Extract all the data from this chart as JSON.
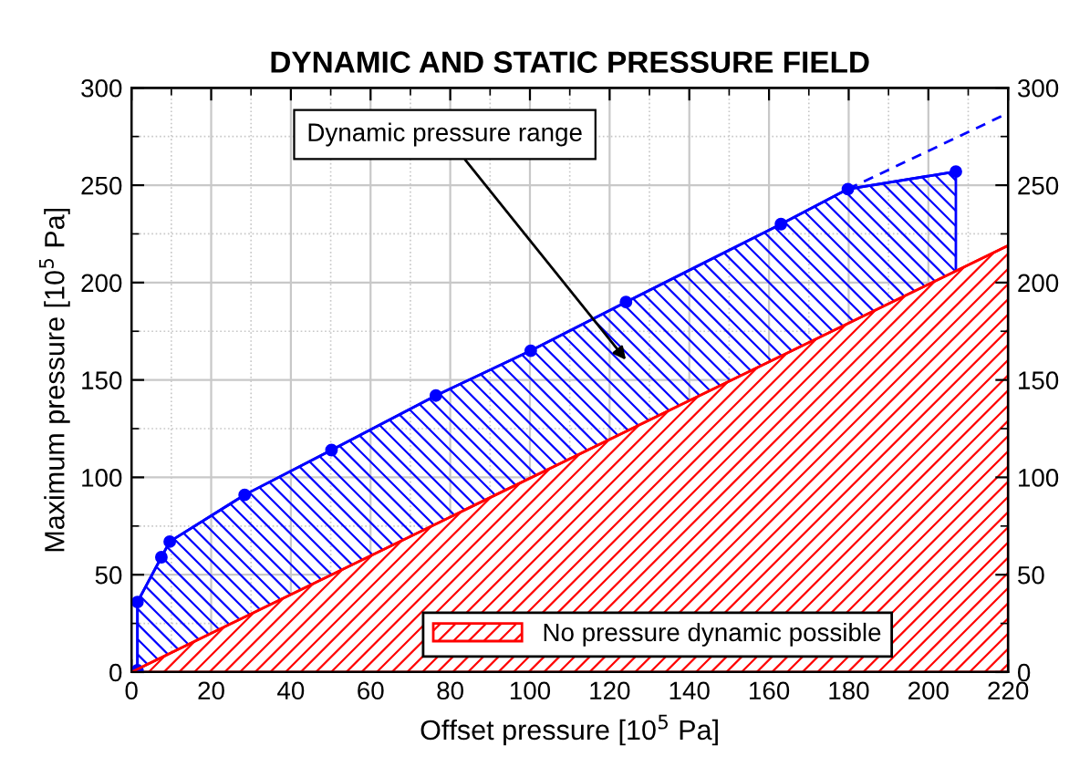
{
  "chart_data": {
    "type": "area",
    "title": "DYNAMIC AND STATIC PRESSURE FIELD",
    "xlabel": "Offset pressure [10$^{5}$ Pa]",
    "ylabel": "Maximum pressure [10$^{5}$ Pa]",
    "xlim": [
      0,
      220
    ],
    "xticks": [
      0,
      20,
      40,
      60,
      80,
      100,
      120,
      140,
      160,
      180,
      200,
      220
    ],
    "ylim": [
      0,
      300
    ],
    "yticks": [
      0,
      50,
      100,
      150,
      200,
      250,
      300
    ],
    "y2lim": [
      0,
      300
    ],
    "y2ticks": [
      0,
      50,
      100,
      150,
      200,
      250,
      300
    ],
    "grid": true,
    "legend": "bottom",
    "annotations": [
      "Dynamic pressure range"
    ],
    "series": [
      {
        "color": "#0000ff",
        "marker": "circle",
        "x": [
          1.5,
          1.5,
          7.5,
          9.6,
          28.4,
          50.2,
          76.4,
          100.2,
          124.1,
          163,
          179.8,
          206.9
        ],
        "values": [
          1,
          36,
          59,
          67,
          91,
          114,
          142,
          165,
          190,
          230,
          248,
          257
        ]
      },
      {
        "name": "No pressure dynamic possible",
        "color": "#ff0000",
        "x": [
          0,
          220
        ],
        "values": [
          0,
          219
        ]
      },
      {
        "type": "line",
        "color": "#0000ff",
        "line_style": "dashed",
        "x": [
          179.8,
          220
        ],
        "values": [
          248,
          287
        ]
      }
    ]
  }
}
